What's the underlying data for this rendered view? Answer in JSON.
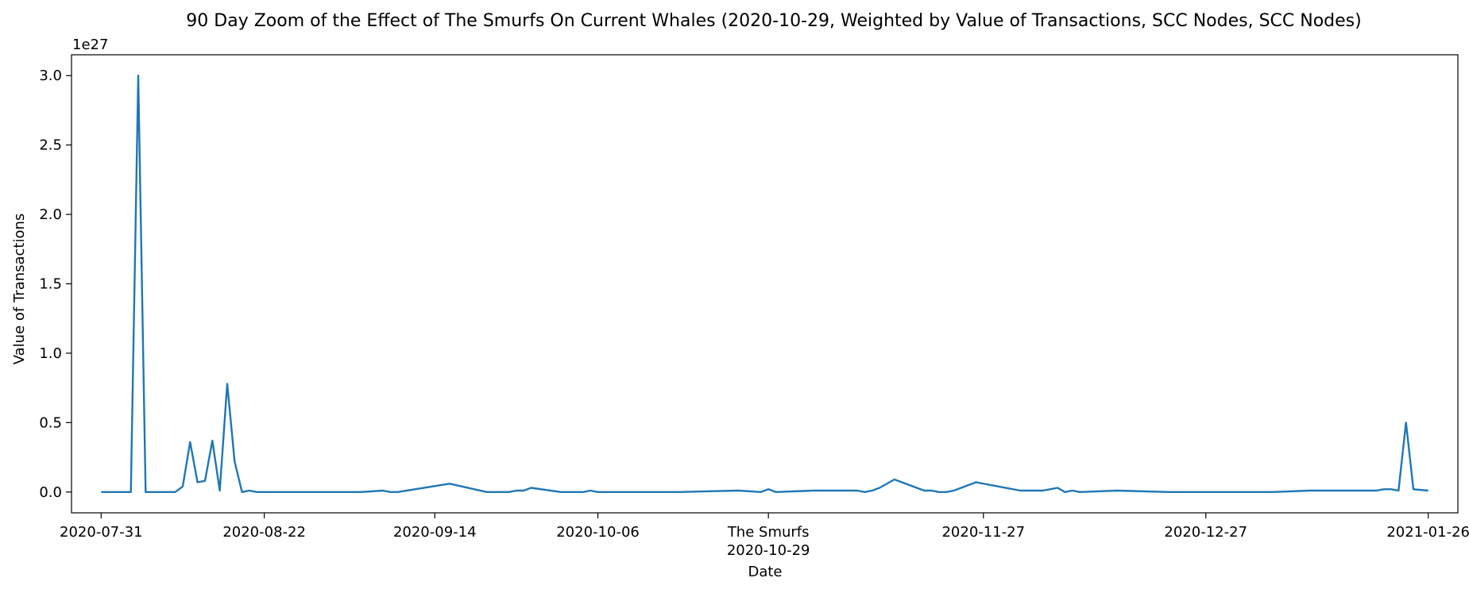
{
  "chart_data": {
    "type": "line",
    "title": "90 Day Zoom of the Effect of The Smurfs On Current Whales (2020-10-29, Weighted by Value of Transactions, SCC Nodes, SCC Nodes)",
    "xlabel": "Date",
    "ylabel": "Value of Transactions",
    "y_offset_label": "1e27",
    "y_scale": 1e+27,
    "ylim": [
      -0.15,
      3.15
    ],
    "xlim": [
      "2020-07-27",
      "2021-01-30"
    ],
    "grid": false,
    "y_ticks": [
      0.0,
      0.5,
      1.0,
      1.5,
      2.0,
      2.5,
      3.0
    ],
    "y_tick_labels": [
      "0.0",
      "0.5",
      "1.0",
      "1.5",
      "2.0",
      "2.5",
      "3.0"
    ],
    "x_ticks": [
      {
        "date": "2020-07-31",
        "label": "2020-07-31"
      },
      {
        "date": "2020-08-22",
        "label": "2020-08-22"
      },
      {
        "date": "2020-09-14",
        "label": "2020-09-14"
      },
      {
        "date": "2020-10-06",
        "label": "2020-10-06"
      },
      {
        "date": "2020-10-29",
        "label": "The Smurfs",
        "sublabel": "2020-10-29"
      },
      {
        "date": "2020-11-27",
        "label": "2020-11-27"
      },
      {
        "date": "2020-12-27",
        "label": "2020-12-27"
      },
      {
        "date": "2021-01-26",
        "label": "2021-01-26"
      }
    ],
    "series": [
      {
        "color": "#1f77b4",
        "x": [
          "2020-07-31",
          "2020-08-04",
          "2020-08-05",
          "2020-08-06",
          "2020-08-10",
          "2020-08-11",
          "2020-08-12",
          "2020-08-13",
          "2020-08-14",
          "2020-08-15",
          "2020-08-16",
          "2020-08-17",
          "2020-08-18",
          "2020-08-19",
          "2020-08-20",
          "2020-08-21",
          "2020-08-25",
          "2020-08-29",
          "2020-09-04",
          "2020-09-07",
          "2020-09-08",
          "2020-09-09",
          "2020-09-16",
          "2020-09-21",
          "2020-09-24",
          "2020-09-25",
          "2020-09-26",
          "2020-09-27",
          "2020-10-01",
          "2020-10-04",
          "2020-10-05",
          "2020-10-06",
          "2020-10-11",
          "2020-10-17",
          "2020-10-25",
          "2020-10-28",
          "2020-10-29",
          "2020-10-30",
          "2020-11-04",
          "2020-11-07",
          "2020-11-10",
          "2020-11-11",
          "2020-11-12",
          "2020-11-13",
          "2020-11-15",
          "2020-11-19",
          "2020-11-20",
          "2020-11-21",
          "2020-11-22",
          "2020-11-23",
          "2020-11-24",
          "2020-11-26",
          "2020-12-02",
          "2020-12-05",
          "2020-12-06",
          "2020-12-07",
          "2020-12-08",
          "2020-12-09",
          "2020-12-10",
          "2020-12-15",
          "2020-12-22",
          "2020-12-29",
          "2021-01-05",
          "2021-01-10",
          "2021-01-16",
          "2021-01-19",
          "2021-01-20",
          "2021-01-21",
          "2021-01-22",
          "2021-01-23",
          "2021-01-24",
          "2021-01-26"
        ],
        "values": [
          0.0,
          0.0,
          3.0,
          0.0,
          0.0,
          0.04,
          0.36,
          0.07,
          0.08,
          0.37,
          0.01,
          0.78,
          0.22,
          0.0,
          0.01,
          0.0,
          0.0,
          0.0,
          0.0,
          0.01,
          0.0,
          0.0,
          0.06,
          0.0,
          0.0,
          0.01,
          0.01,
          0.03,
          0.0,
          0.0,
          0.01,
          0.0,
          0.0,
          0.0,
          0.01,
          0.0,
          0.02,
          0.0,
          0.01,
          0.01,
          0.01,
          0.0,
          0.01,
          0.03,
          0.09,
          0.01,
          0.01,
          0.0,
          0.0,
          0.01,
          0.03,
          0.07,
          0.01,
          0.01,
          0.02,
          0.03,
          0.0,
          0.01,
          0.0,
          0.01,
          0.0,
          0.0,
          0.0,
          0.01,
          0.01,
          0.01,
          0.02,
          0.02,
          0.01,
          0.5,
          0.02,
          0.01
        ]
      }
    ]
  }
}
